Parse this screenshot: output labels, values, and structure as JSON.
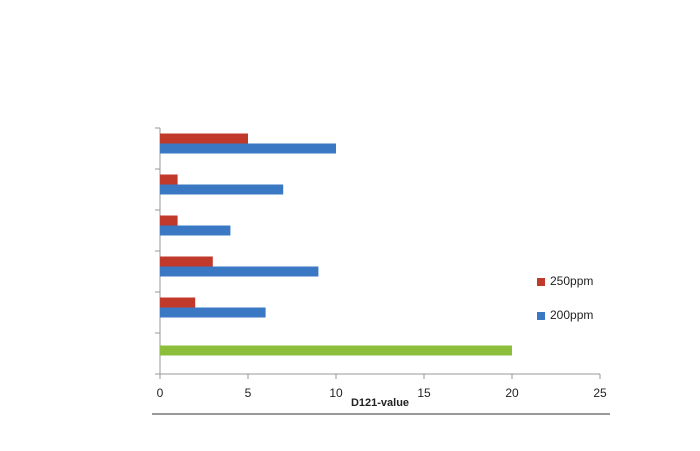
{
  "chart_data": {
    "type": "bar",
    "orientation": "horizontal",
    "categories": [
      null,
      null,
      null,
      null,
      null,
      null
    ],
    "series": [
      {
        "name": "250ppm",
        "color": "#c0392b",
        "values": [
          null,
          2,
          3,
          1,
          1,
          5
        ]
      },
      {
        "name": "200ppm",
        "color": "#3a78c3",
        "values": [
          null,
          6,
          9,
          4,
          7,
          10
        ]
      },
      {
        "color": "#8cbe3c",
        "values": [
          20,
          null,
          null,
          null,
          null,
          null
        ]
      }
    ],
    "x_label": "D121-value",
    "xlim": [
      0,
      25
    ],
    "xticks": [
      0,
      5,
      10,
      15,
      20,
      25
    ],
    "grid": false
  }
}
